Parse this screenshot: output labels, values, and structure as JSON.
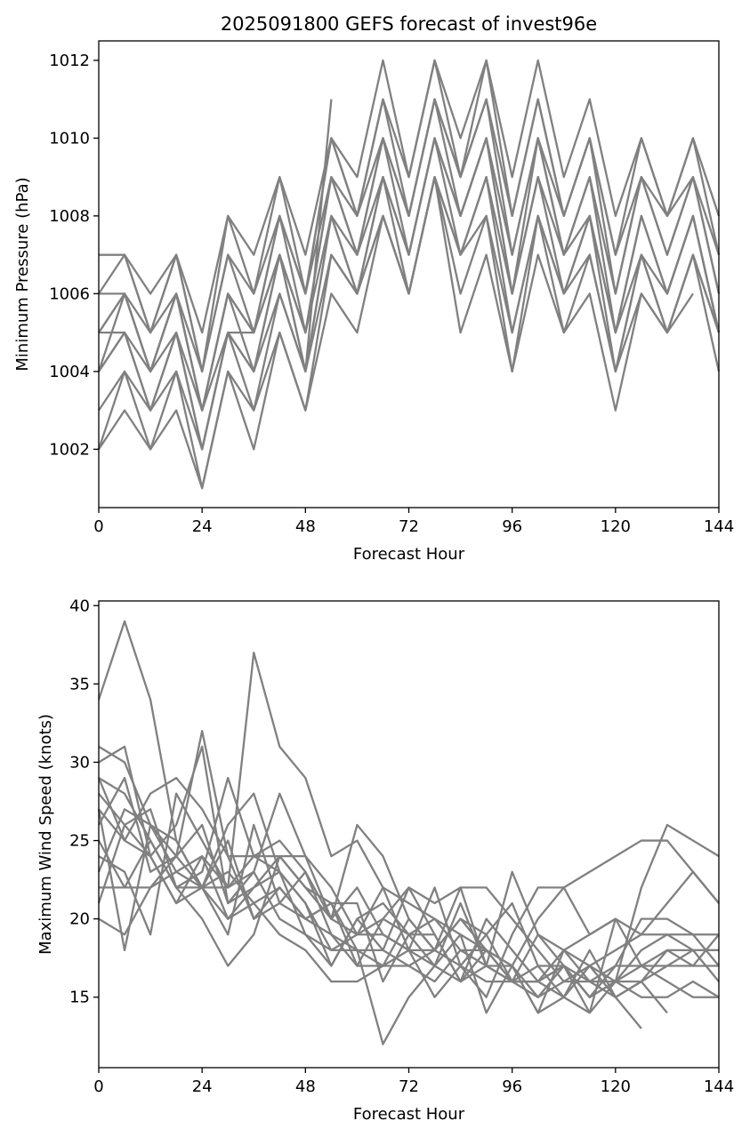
{
  "chart_data": [
    {
      "type": "line",
      "title": "2025091800 GEFS forecast of invest96e",
      "xlabel": "Forecast Hour",
      "ylabel": "Minimum Pressure (hPa)",
      "xlim": [
        0,
        144
      ],
      "ylim": [
        1000.5,
        1012.5
      ],
      "xticks": [
        0,
        24,
        48,
        72,
        96,
        120,
        144
      ],
      "yticks": [
        1002,
        1004,
        1006,
        1008,
        1010,
        1012
      ],
      "grid": false,
      "line_color": "#808080",
      "x": [
        0,
        6,
        12,
        18,
        24,
        30,
        36,
        42,
        48,
        54,
        60,
        66,
        72,
        78,
        84,
        90,
        96,
        102,
        108,
        114,
        120,
        126,
        132,
        138,
        144
      ],
      "series": [
        {
          "values": [
            1007,
            1007,
            1006,
            1007,
            1005,
            1008,
            1007,
            1009,
            1007,
            1010,
            1009,
            1012,
            1009,
            1012,
            1010,
            1012,
            1009,
            1012,
            1009,
            1011,
            1008,
            1010,
            1008,
            1010,
            1008
          ]
        },
        {
          "values": [
            1007,
            1007,
            1005,
            1007,
            1004,
            1008,
            1006,
            1009,
            1006,
            1010,
            1008,
            1011,
            1009,
            1012,
            1009,
            1012,
            1008,
            1011,
            1008,
            1010,
            1007,
            1010,
            1008,
            1010,
            1007
          ]
        },
        {
          "values": [
            1006,
            1007,
            1005,
            1007,
            1004,
            1007,
            1006,
            1008,
            1006,
            1010,
            1008,
            1011,
            1008,
            1011,
            1009,
            1011,
            1008,
            1011,
            1008,
            1010,
            1007,
            1009,
            1008,
            1009,
            1007
          ]
        },
        {
          "values": [
            1006,
            1006,
            1005,
            1006,
            1004,
            1007,
            1005,
            1008,
            1006,
            1009,
            1008,
            1010,
            1008,
            1011,
            1009,
            1011,
            1007,
            1010,
            1008,
            1010,
            1006,
            1009,
            1007,
            1009,
            1006
          ]
        },
        {
          "values": [
            1005,
            1006,
            1004,
            1006,
            1003,
            1006,
            1005,
            1008,
            1005,
            1009,
            1007,
            1010,
            1008,
            1011,
            1008,
            1010,
            1007,
            1010,
            1007,
            1009,
            1006,
            1009,
            1007,
            1009,
            1006
          ]
        },
        {
          "values": [
            1005,
            1006,
            1004,
            1006,
            1003,
            1006,
            1005,
            1007,
            1005,
            1009,
            1007,
            1010,
            1007,
            1010,
            1008,
            1010,
            1006,
            1010,
            1007,
            1009,
            1005,
            1008,
            1006,
            1008,
            1005
          ]
        },
        {
          "values": [
            1005,
            1005,
            1004,
            1005,
            1003,
            1006,
            1004,
            1007,
            1005,
            1008,
            1007,
            1009,
            1007,
            1010,
            1008,
            1010,
            1006,
            1009,
            1007,
            1008,
            1005,
            1008,
            1006,
            1008,
            1005
          ]
        },
        {
          "values": [
            1004,
            1005,
            1003,
            1005,
            1002,
            1005,
            1004,
            1007,
            1004,
            1008,
            1006,
            1009,
            1007,
            1010,
            1007,
            1009,
            1006,
            1009,
            1006,
            1008,
            1005,
            1007,
            1006,
            1008,
            1005
          ]
        },
        {
          "values": [
            1004,
            1005,
            1003,
            1005,
            1002,
            1005,
            1004,
            1006,
            1004,
            1008,
            1006,
            1009,
            1006,
            1009,
            1007,
            1009,
            1005,
            1008,
            1006,
            1008,
            1004,
            1007,
            1005,
            1007,
            1005
          ]
        },
        {
          "values": [
            1003,
            1004,
            1003,
            1004,
            1002,
            1005,
            1003,
            1006,
            1004,
            1007,
            1006,
            1008,
            1006,
            1009,
            1007,
            1008,
            1005,
            1008,
            1006,
            1007,
            1004,
            1007,
            1005,
            1007,
            1004
          ]
        },
        {
          "values": [
            1002,
            1004,
            1002,
            1004,
            1001,
            1004,
            1003,
            1005,
            1003,
            1007,
            1006,
            1008,
            1006,
            1009,
            1006,
            1008,
            1004,
            1008,
            1005,
            1007,
            1004,
            1006,
            1005,
            1007,
            1005
          ]
        },
        {
          "values": [
            1002,
            1003,
            1002,
            1003,
            1001,
            1004,
            1002,
            1005,
            1003,
            1006,
            1005,
            1008,
            1006,
            1009,
            1005,
            1007,
            1004,
            1007,
            1005,
            1006,
            1003,
            1006,
            1005,
            1006,
            null
          ]
        },
        {
          "values": [
            1004,
            1006,
            1004,
            1006,
            1003,
            1005,
            1005,
            1007,
            1004,
            1011,
            null,
            null,
            null,
            null,
            null,
            null,
            null,
            null,
            null,
            null,
            null,
            null,
            null,
            null,
            null
          ]
        }
      ]
    },
    {
      "type": "line",
      "title": "",
      "xlabel": "Forecast Hour",
      "ylabel": "Maximum Wind Speed (knots)",
      "xlim": [
        0,
        144
      ],
      "ylim": [
        10.5,
        40.3
      ],
      "xticks": [
        0,
        24,
        48,
        72,
        96,
        120,
        144
      ],
      "yticks": [
        15,
        20,
        25,
        30,
        35,
        40
      ],
      "grid": false,
      "line_color": "#808080",
      "x": [
        0,
        6,
        12,
        18,
        24,
        30,
        36,
        42,
        48,
        54,
        60,
        66,
        72,
        78,
        84,
        90,
        96,
        102,
        108,
        114,
        120,
        126,
        132,
        138,
        144
      ],
      "series": [
        {
          "values": [
            34,
            39,
            34,
            25,
            22,
            22,
            37,
            31,
            29,
            24,
            25,
            22,
            21,
            20,
            18,
            17,
            16,
            15,
            16,
            17,
            18,
            19,
            21,
            23,
            21
          ]
        },
        {
          "values": [
            31,
            30,
            26,
            24,
            32,
            24,
            24,
            24,
            24,
            20,
            26,
            24,
            20,
            18,
            17,
            16,
            16,
            16,
            15,
            14,
            16,
            18,
            19,
            19,
            19
          ]
        },
        {
          "values": [
            30,
            31,
            24,
            26,
            31,
            21,
            23,
            28,
            24,
            22,
            19,
            22,
            18,
            18,
            22,
            22,
            20,
            18,
            16,
            16,
            17,
            20,
            20,
            19,
            17
          ]
        },
        {
          "values": [
            29,
            28,
            25,
            22,
            23,
            29,
            24,
            25,
            23,
            20,
            19,
            20,
            22,
            21,
            22,
            17,
            23,
            19,
            18,
            17,
            15,
            16,
            18,
            18,
            18
          ]
        },
        {
          "values": [
            28,
            26,
            27,
            22,
            22,
            26,
            28,
            23,
            21,
            18,
            18,
            17,
            18,
            15,
            17,
            15,
            19,
            22,
            22,
            23,
            24,
            25,
            25,
            23,
            21
          ]
        },
        {
          "values": [
            27,
            25,
            28,
            29,
            27,
            24,
            20,
            22,
            20,
            21,
            18,
            12,
            15,
            17,
            16,
            20,
            18,
            16,
            17,
            15,
            16,
            15,
            15,
            16,
            15
          ]
        },
        {
          "values": [
            25,
            22,
            22,
            23,
            24,
            20,
            21,
            22,
            20,
            21,
            17,
            17,
            17,
            18,
            20,
            18,
            17,
            20,
            22,
            19,
            20,
            19,
            19,
            18,
            18
          ]
        },
        {
          "values": [
            24,
            23,
            19,
            28,
            25,
            22,
            23,
            20,
            19,
            18,
            19,
            19,
            18,
            22,
            17,
            19,
            16,
            19,
            17,
            15,
            17,
            17,
            16,
            15,
            15
          ]
        },
        {
          "values": [
            22,
            22,
            25,
            22,
            20,
            17,
            19,
            24,
            22,
            21,
            21,
            16,
            19,
            20,
            19,
            18,
            16,
            16,
            17,
            16,
            16,
            22,
            26,
            25,
            24
          ]
        },
        {
          "values": [
            21,
            26,
            24,
            21,
            22,
            23,
            21,
            19,
            18,
            16,
            16,
            17,
            20,
            18,
            20,
            19,
            21,
            17,
            15,
            17,
            16,
            17,
            17,
            17,
            19
          ]
        },
        {
          "values": [
            20,
            19,
            22,
            24,
            22,
            20,
            22,
            23,
            21,
            17,
            20,
            21,
            19,
            19,
            16,
            18,
            16,
            17,
            17,
            15,
            16,
            16,
            14,
            null,
            null
          ]
        },
        {
          "values": [
            27,
            18,
            26,
            25,
            22,
            19,
            26,
            21,
            20,
            19,
            18,
            18,
            17,
            16,
            18,
            18,
            17,
            14,
            15,
            18,
            15,
            16,
            17,
            18,
            16
          ]
        },
        {
          "values": [
            26,
            29,
            23,
            24,
            26,
            21,
            22,
            24,
            22,
            20,
            22,
            19,
            18,
            17,
            21,
            17,
            16,
            16,
            18,
            19,
            20,
            17,
            18,
            17,
            17
          ]
        },
        {
          "values": [
            23,
            27,
            26,
            23,
            22,
            25,
            20,
            21,
            23,
            19,
            17,
            20,
            19,
            17,
            19,
            14,
            17,
            15,
            17,
            14,
            20,
            null,
            null,
            null,
            null
          ]
        },
        {
          "values": [
            29,
            25,
            24,
            21,
            24,
            22,
            24,
            23,
            19,
            17,
            20,
            18,
            22,
            19,
            16,
            17,
            17,
            14,
            18,
            16,
            15,
            13,
            null,
            null,
            null
          ]
        }
      ]
    }
  ]
}
